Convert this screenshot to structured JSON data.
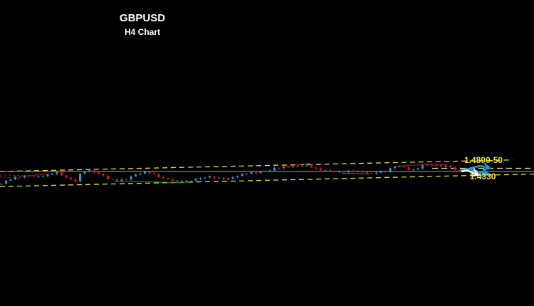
{
  "chart_data": {
    "type": "candlestick",
    "title": "GBPUSD",
    "subtitle": "H4 Chart",
    "colors": {
      "up": "#1f9ae0",
      "down": "#e01010",
      "channel": "#e6e620",
      "level_line": "#9aa6c0",
      "background": "#000000"
    },
    "close_path": [
      [
        0,
        1.4126
      ],
      [
        1.5,
        1.4246
      ],
      [
        3,
        1.4306
      ],
      [
        5.4,
        1.4346
      ],
      [
        7.7,
        1.4316
      ],
      [
        10,
        1.4376
      ],
      [
        12,
        1.4456
      ],
      [
        13.8,
        1.4306
      ],
      [
        15.4,
        1.4226
      ],
      [
        16.2,
        1.4196
      ],
      [
        17.2,
        1.4446
      ],
      [
        18.5,
        1.4506
      ],
      [
        20,
        1.4456
      ],
      [
        21.5,
        1.4386
      ],
      [
        23,
        1.4266
      ],
      [
        24.6,
        1.4216
      ],
      [
        26.9,
        1.4246
      ],
      [
        28.5,
        1.4366
      ],
      [
        30,
        1.4426
      ],
      [
        31.5,
        1.4466
      ],
      [
        33,
        1.4386
      ],
      [
        34.6,
        1.4286
      ],
      [
        36.9,
        1.4226
      ],
      [
        38.5,
        1.4186
      ],
      [
        40.3,
        1.4196
      ],
      [
        42.3,
        1.4266
      ],
      [
        44.6,
        1.4326
      ],
      [
        46.9,
        1.4286
      ],
      [
        48.5,
        1.4246
      ],
      [
        50.8,
        1.4346
      ],
      [
        53,
        1.4426
      ],
      [
        55.4,
        1.4446
      ],
      [
        57.7,
        1.4496
      ],
      [
        59.2,
        1.4566
      ],
      [
        60.8,
        1.4596
      ],
      [
        62.3,
        1.4606
      ],
      [
        64.6,
        1.4636
      ],
      [
        66.2,
        1.4656
      ],
      [
        66.9,
        1.4606
      ],
      [
        67.7,
        1.4546
      ],
      [
        70,
        1.4496
      ],
      [
        72.3,
        1.4456
      ],
      [
        74.6,
        1.4476
      ],
      [
        76.9,
        1.4476
      ],
      [
        79.2,
        1.4426
      ],
      [
        80,
        1.4406
      ],
      [
        81.5,
        1.4476
      ],
      [
        83,
        1.4466
      ],
      [
        84.6,
        1.4606
      ],
      [
        86.2,
        1.4626
      ],
      [
        87.7,
        1.4546
      ],
      [
        88.9,
        1.4506
      ],
      [
        90.8,
        1.4626
      ],
      [
        91.8,
        1.4676
      ],
      [
        93,
        1.4656
      ],
      [
        94.6,
        1.4626
      ],
      [
        96.2,
        1.4616
      ],
      [
        96.9,
        1.4626
      ],
      [
        97.4,
        1.4526
      ],
      [
        98.5,
        1.4486
      ],
      [
        99.2,
        1.4466
      ]
    ],
    "channel_upper": [
      [
        0,
        1.447
      ],
      [
        110.8,
        1.4796
      ]
    ],
    "channel_lower": [
      [
        0,
        1.4046
      ],
      [
        115.4,
        1.44
      ]
    ],
    "horizontal_level": 1.4476,
    "dashed_level": {
      "price": 1.456,
      "from_bar": 93.4
    },
    "trendlines_red": [
      [
        [
          60.8,
          1.459
        ],
        [
          66.9,
          1.4702
        ]
      ],
      [
        [
          85.4,
          1.4616
        ],
        [
          92,
          1.4676
        ],
        [
          96.9,
          1.4672
        ]
      ],
      [
        [
          6.2,
          1.435
        ],
        [
          11.5,
          1.4416
        ]
      ]
    ],
    "trendlines_red_dashed": [
      [
        [
          0,
          1.4376
        ],
        [
          6.2,
          1.4346
        ]
      ],
      [
        [
          0,
          1.4316
        ],
        [
          4.6,
          1.4276
        ]
      ]
    ],
    "trendlines_green": [
      [
        [
          24.6,
          1.4194
        ],
        [
          38.5,
          1.4162
        ],
        [
          41.2,
          1.4182
        ]
      ],
      [
        [
          73.8,
          1.4426
        ],
        [
          80,
          1.44
        ]
      ]
    ],
    "arrows": [
      {
        "color": "#1a9be0",
        "points": [
          [
            101.5,
            1.456
          ],
          [
            103.8,
            1.4632
          ],
          [
            105.8,
            1.4566
          ]
        ]
      },
      {
        "color": "#1a9be0",
        "points": [
          [
            99.5,
            1.451
          ],
          [
            101.2,
            1.4542
          ],
          [
            105.5,
            1.439
          ]
        ]
      },
      {
        "color": "#ffffff",
        "points": [
          [
            99.7,
            1.447
          ],
          [
            100.9,
            1.4502
          ],
          [
            103.4,
            1.4376
          ]
        ]
      }
    ],
    "annotations": [
      {
        "text": "1.4800-50",
        "bar": 100.3,
        "price": 1.48
      },
      {
        "text": "1.4330",
        "bar": 101.5,
        "price": 1.433
      }
    ]
  }
}
